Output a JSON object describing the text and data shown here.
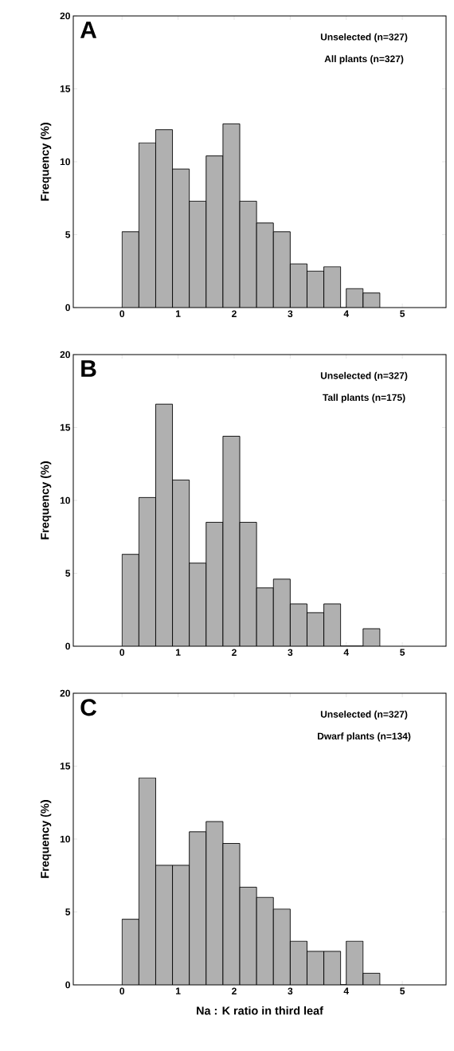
{
  "chart_data": [
    {
      "type": "histogram",
      "ylabel": "Frequency (%)",
      "annotations": [
        "A",
        "Unselected (n=327)",
        "All plants (n=327)"
      ],
      "color": "#b0b0b0",
      "bins": [
        0,
        0.3,
        0.6,
        0.9,
        1.2,
        1.5,
        1.8,
        2.1,
        2.4,
        2.7,
        3.0,
        3.3,
        3.6,
        3.9,
        4.0,
        4.3,
        4.6
      ],
      "values": [
        5.2,
        11.3,
        12.2,
        9.5,
        7.3,
        10.4,
        12.6,
        7.3,
        5.8,
        5.2,
        3.0,
        2.5,
        2.8,
        0,
        1.3,
        1.0
      ],
      "xlim": [
        -0.87,
        5.78
      ],
      "ylim": [
        0,
        20
      ],
      "xticks": [
        0,
        1,
        2,
        3,
        4,
        5
      ],
      "yticks": [
        0,
        5,
        10,
        15,
        20
      ]
    },
    {
      "type": "histogram",
      "ylabel": "Frequency (%)",
      "annotations": [
        "B",
        "Unselected (n=327)",
        "Tall plants (n=175)"
      ],
      "color": "#b0b0b0",
      "bins": [
        0,
        0.3,
        0.6,
        0.9,
        1.2,
        1.5,
        1.8,
        2.1,
        2.4,
        2.7,
        3.0,
        3.3,
        3.6,
        3.9,
        4.3,
        4.6
      ],
      "values": [
        6.3,
        10.2,
        16.6,
        11.4,
        5.7,
        8.5,
        14.4,
        8.5,
        4.0,
        4.6,
        2.9,
        2.3,
        2.9,
        0,
        1.2
      ],
      "xlim": [
        -0.87,
        5.78
      ],
      "ylim": [
        0,
        20
      ],
      "xticks": [
        0,
        1,
        2,
        3,
        4,
        5
      ],
      "yticks": [
        0,
        5,
        10,
        15,
        20
      ]
    },
    {
      "type": "histogram",
      "xlabel": "Na : K ratio in third leaf",
      "ylabel": "Frequency (%)",
      "annotations": [
        "C",
        "Unselected (n=327)",
        "Dwarf plants (n=134)"
      ],
      "color": "#b0b0b0",
      "bins": [
        0,
        0.3,
        0.6,
        0.9,
        1.2,
        1.5,
        1.8,
        2.1,
        2.4,
        2.7,
        3.0,
        3.3,
        3.6,
        3.9,
        4.0,
        4.3,
        4.6
      ],
      "values": [
        4.5,
        14.2,
        8.2,
        8.2,
        10.5,
        11.2,
        9.7,
        6.7,
        6.0,
        5.2,
        3.0,
        2.3,
        2.3,
        0,
        3.0,
        0.8
      ],
      "xlim": [
        -0.87,
        5.78
      ],
      "ylim": [
        0,
        20
      ],
      "xticks": [
        0,
        1,
        2,
        3,
        4,
        5
      ],
      "yticks": [
        0,
        5,
        10,
        15,
        20
      ]
    }
  ]
}
